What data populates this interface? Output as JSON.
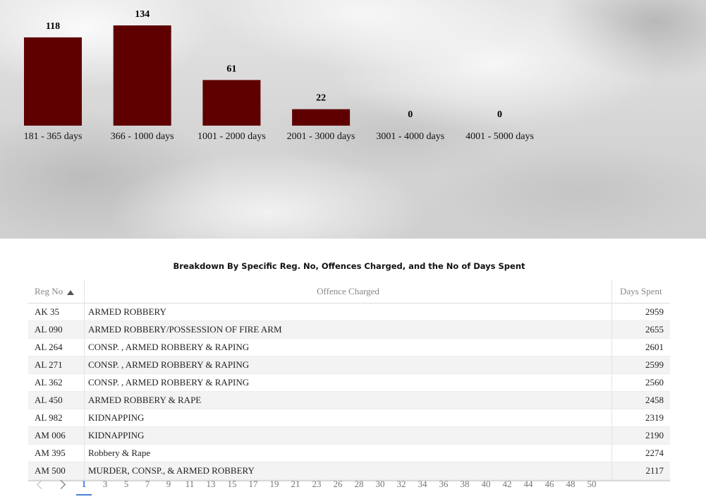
{
  "chart_data": {
    "type": "bar",
    "categories": [
      "181 - 365 days",
      "366 - 1000 days",
      "1001 - 2000 days",
      "2001 - 3000 days",
      "3001 - 4000 days",
      "4001 - 5000 days"
    ],
    "values": [
      118,
      134,
      61,
      22,
      0,
      0
    ],
    "title": "",
    "xlabel": "",
    "ylabel": "",
    "ylim": [
      0,
      134
    ],
    "grid": false,
    "bar_color": "#5f0000"
  },
  "table": {
    "title": "Breakdown By Specific Reg. No, Offences Charged, and the No of Days Spent",
    "columns": [
      "Reg No",
      "Offence Charged",
      "Days Spent"
    ],
    "sort_column": "Reg No",
    "sort_direction": "ascending",
    "rows": [
      [
        "AK 35",
        "ARMED ROBBERY",
        "2959"
      ],
      [
        "AL 090",
        "ARMED ROBBERY/POSSESSION OF FIRE ARM",
        "2655"
      ],
      [
        "AL 264",
        "CONSP. , ARMED ROBBERY & RAPING",
        "2601"
      ],
      [
        "AL 271",
        "CONSP. , ARMED ROBBERY & RAPING",
        "2599"
      ],
      [
        "AL 362",
        "CONSP. , ARMED ROBBERY & RAPING",
        "2560"
      ],
      [
        "AL 450",
        "ARMED ROBBERY & RAPE",
        "2458"
      ],
      [
        "AL 982",
        "KIDNAPPING",
        "2319"
      ],
      [
        "AM 006",
        "KIDNAPPING",
        "2190"
      ],
      [
        "AM 395",
        "Robbery & Rape",
        "2274"
      ],
      [
        "AM 500",
        "MURDER, CONSP., & ARMED ROBBERY",
        "2117"
      ]
    ]
  },
  "pagination": {
    "current": "1",
    "pages": [
      "1",
      "3",
      "5",
      "7",
      "9",
      "11",
      "13",
      "15",
      "17",
      "19",
      "21",
      "23",
      "26",
      "28",
      "30",
      "32",
      "34",
      "36",
      "38",
      "40",
      "42",
      "44",
      "46",
      "48",
      "50"
    ],
    "accent_color": "#4a7fd6"
  }
}
